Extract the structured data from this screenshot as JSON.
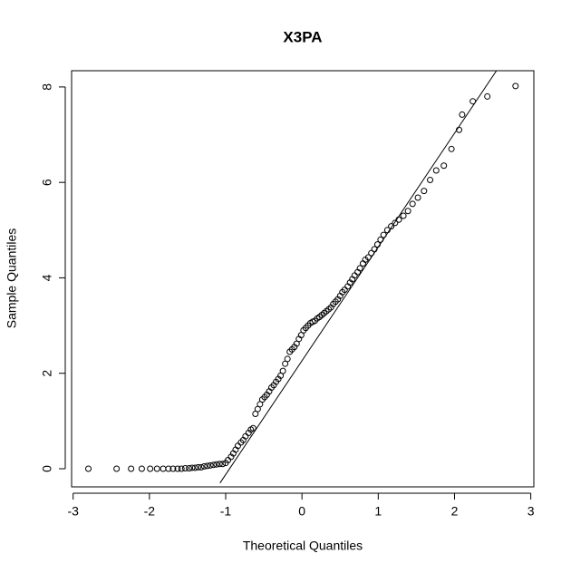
{
  "chart_data": {
    "type": "qq",
    "title": "X3PA",
    "x_label": "Theoretical Quantiles",
    "y_label": "Sample Quantiles",
    "xlim": [
      -3.02,
      3.04
    ],
    "ylim": [
      -0.38,
      8.34
    ],
    "xticks": [
      -3,
      -2,
      -1,
      0,
      1,
      2,
      3
    ],
    "yticks": [
      0,
      2,
      4,
      6,
      8
    ],
    "color": "#000000",
    "x": [
      -2.8,
      -2.43,
      -2.24,
      -2.1,
      -1.99,
      -1.9,
      -1.82,
      -1.75,
      -1.69,
      -1.63,
      -1.58,
      -1.53,
      -1.48,
      -1.44,
      -1.4,
      -1.36,
      -1.32,
      -1.28,
      -1.24,
      -1.2,
      -1.16,
      -1.12,
      -1.08,
      -1.04,
      -1.0,
      -0.97,
      -0.93,
      -0.9,
      -0.87,
      -0.84,
      -0.8,
      -0.77,
      -0.74,
      -0.7,
      -0.67,
      -0.64,
      -0.61,
      -0.58,
      -0.55,
      -0.52,
      -0.49,
      -0.46,
      -0.43,
      -0.4,
      -0.37,
      -0.34,
      -0.31,
      -0.28,
      -0.25,
      -0.22,
      -0.19,
      -0.16,
      -0.13,
      -0.1,
      -0.07,
      -0.04,
      -0.01,
      0.02,
      0.05,
      0.08,
      0.11,
      0.14,
      0.17,
      0.2,
      0.23,
      0.26,
      0.29,
      0.32,
      0.35,
      0.38,
      0.41,
      0.44,
      0.47,
      0.5,
      0.53,
      0.56,
      0.6,
      0.63,
      0.66,
      0.69,
      0.73,
      0.76,
      0.8,
      0.83,
      0.87,
      0.91,
      0.95,
      0.99,
      1.03,
      1.07,
      1.12,
      1.17,
      1.22,
      1.27,
      1.33,
      1.39,
      1.45,
      1.52,
      1.6,
      1.68,
      1.76,
      1.86,
      1.96,
      2.06,
      2.1,
      2.24,
      2.43,
      2.8
    ],
    "values": [
      0,
      0,
      0,
      0,
      0,
      0,
      0,
      0,
      0,
      0,
      0,
      0.01,
      0.01,
      0.02,
      0.02,
      0.03,
      0.03,
      0.05,
      0.06,
      0.07,
      0.08,
      0.09,
      0.1,
      0.1,
      0.12,
      0.18,
      0.25,
      0.32,
      0.4,
      0.48,
      0.55,
      0.6,
      0.68,
      0.75,
      0.82,
      0.85,
      1.15,
      1.25,
      1.35,
      1.45,
      1.5,
      1.55,
      1.62,
      1.7,
      1.75,
      1.82,
      1.88,
      1.95,
      2.05,
      2.2,
      2.3,
      2.45,
      2.5,
      2.55,
      2.62,
      2.72,
      2.8,
      2.9,
      2.95,
      3.0,
      3.05,
      3.08,
      3.1,
      3.15,
      3.18,
      3.22,
      3.26,
      3.3,
      3.34,
      3.38,
      3.45,
      3.5,
      3.55,
      3.62,
      3.7,
      3.75,
      3.82,
      3.9,
      3.97,
      4.05,
      4.12,
      4.2,
      4.3,
      4.38,
      4.43,
      4.52,
      4.6,
      4.7,
      4.8,
      4.9,
      5.0,
      5.08,
      5.15,
      5.22,
      5.3,
      5.4,
      5.55,
      5.68,
      5.82,
      6.05,
      6.25,
      6.35,
      6.7,
      7.1,
      7.42,
      7.7,
      7.8,
      8.02
    ],
    "reference_line": {
      "x": [
        -1.075,
        2.55
      ],
      "y": [
        -0.3,
        8.34
      ]
    }
  }
}
